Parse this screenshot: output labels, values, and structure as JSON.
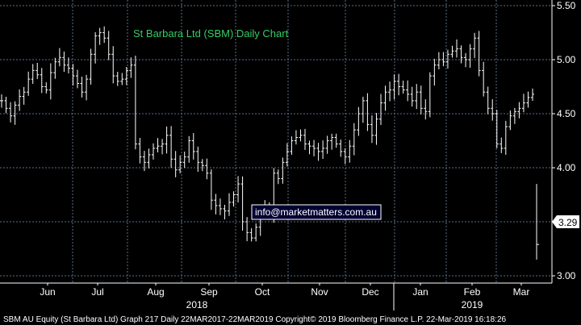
{
  "chart_data": {
    "type": "line",
    "style": "ohlc-bars",
    "title": "St Barbara Ltd (SBM) Daily Chart",
    "ylim": [
      2.95,
      5.55
    ],
    "y_ticks": [
      "5.50",
      "5.00",
      "4.50",
      "4.00",
      "3.50",
      "3.00"
    ],
    "y_tick_values": [
      5.5,
      5.0,
      4.5,
      4.0,
      3.5,
      3.0
    ],
    "x_tick_labels": [
      "Jun",
      "Jul",
      "Aug",
      "Sep",
      "Oct",
      "Nov",
      "Dec",
      "Jan",
      "Feb",
      "Mar"
    ],
    "year_labels": [
      "2018",
      "2019"
    ],
    "last_value": "3.29",
    "last_value_number": 3.29,
    "grid": true,
    "series": [
      {
        "points": [
          4.62,
          4.55,
          4.48,
          4.58,
          4.66,
          4.7,
          4.82,
          4.9,
          4.86,
          4.75,
          4.72,
          4.88,
          4.98,
          5.02,
          4.95,
          4.92,
          4.85,
          4.78,
          4.7,
          4.82,
          5.05,
          5.22,
          5.25,
          5.2,
          5.05,
          4.85,
          4.8,
          4.82,
          4.9,
          4.95,
          4.22,
          4.1,
          4.05,
          4.12,
          4.18,
          4.2,
          4.22,
          4.3,
          4.08,
          3.98,
          4.05,
          4.1,
          4.25,
          4.15,
          4.05,
          4.02,
          3.95,
          3.7,
          3.65,
          3.62,
          3.6,
          3.68,
          3.75,
          3.85,
          3.5,
          3.4,
          3.35,
          3.45,
          3.58,
          3.62,
          3.55,
          3.95,
          3.9,
          4.05,
          4.15,
          4.25,
          4.28,
          4.3,
          4.22,
          4.2,
          4.18,
          4.15,
          4.18,
          4.25,
          4.28,
          4.22,
          4.15,
          4.1,
          4.2,
          4.35,
          4.5,
          4.62,
          4.4,
          4.3,
          4.45,
          4.6,
          4.7,
          4.72,
          4.8,
          4.75,
          4.72,
          4.68,
          4.62,
          4.7,
          4.55,
          4.52,
          4.85,
          4.95,
          5.0,
          4.98,
          5.05,
          5.08,
          5.1,
          5.02,
          5.0,
          5.1,
          5.2,
          4.9,
          4.7,
          4.55,
          4.5,
          4.22,
          4.18,
          4.38,
          4.48,
          4.52,
          4.55,
          4.6,
          4.65,
          4.68
        ],
        "last_segment": [
          3.85,
          3.15
        ]
      }
    ]
  },
  "watermark": "info@marketmatters.com.au",
  "footer": "SBM AU Equity (St Barbara Ltd) Graph 217  Daily 22MAR2017-22MAR2019 Copyright© 2019 Bloomberg Finance L.P.  22-Mar-2019 16:18:26",
  "colors": {
    "background": "#000000",
    "plot_bg": "#000000",
    "grid": "#5a6e8c",
    "bars": "#ffffff",
    "title": "#33cc66",
    "last_value_box": "#ffffff",
    "watermark_bg": "#000033",
    "watermark_border": "#ffffff"
  }
}
